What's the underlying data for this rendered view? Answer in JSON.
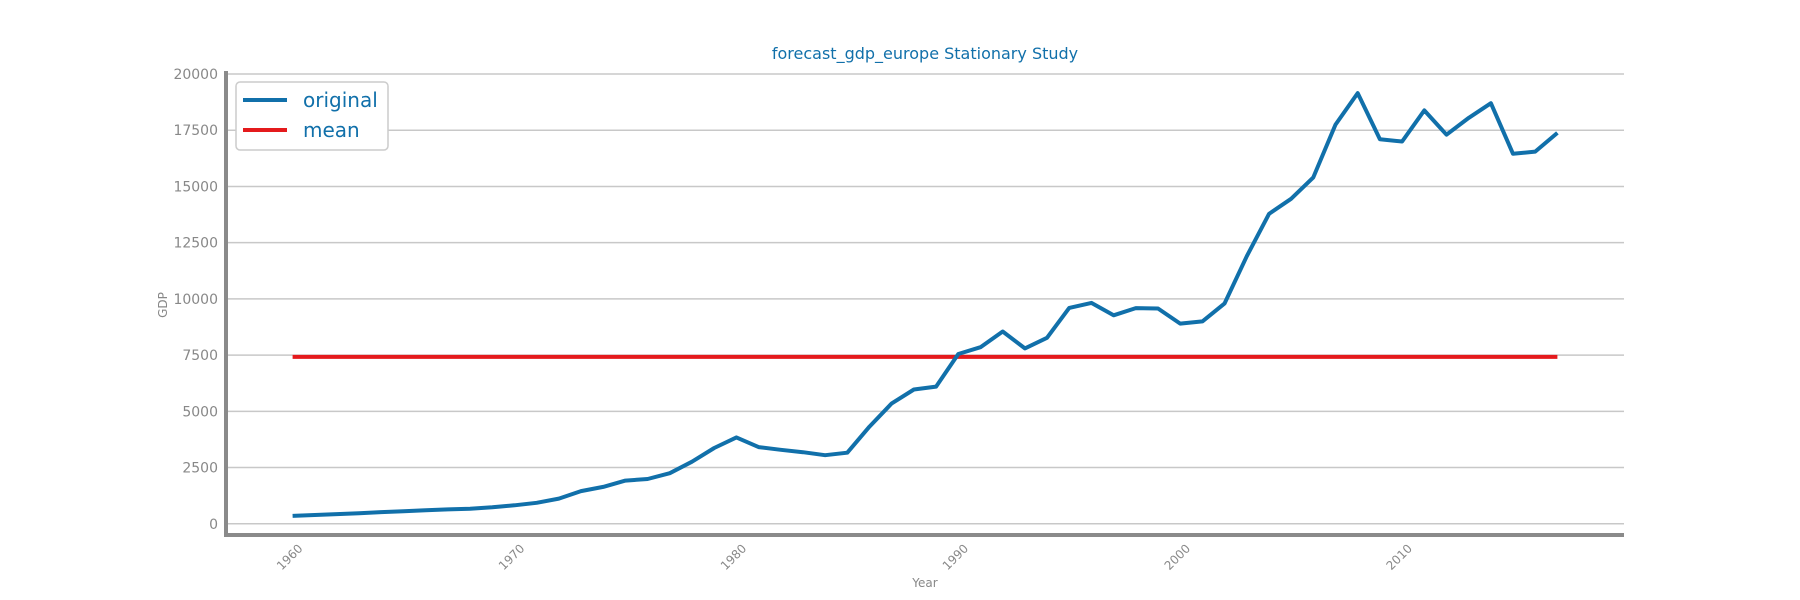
{
  "chart_data": {
    "type": "line",
    "title": "forecast_gdp_europe Stationary Study",
    "xlabel": "Year",
    "ylabel": "GDP",
    "xlim": [
      1957,
      2020
    ],
    "ylim": [
      -500,
      20000
    ],
    "yticks": [
      0,
      2500,
      5000,
      7500,
      10000,
      12500,
      15000,
      17500,
      20000
    ],
    "xticks": [
      1960,
      1970,
      1980,
      1990,
      2000,
      2010
    ],
    "grid": "horizontal",
    "legend_position": "top-left",
    "x": [
      1960,
      1961,
      1962,
      1963,
      1964,
      1965,
      1966,
      1967,
      1968,
      1969,
      1970,
      1971,
      1972,
      1973,
      1974,
      1975,
      1976,
      1977,
      1978,
      1979,
      1980,
      1981,
      1982,
      1983,
      1984,
      1985,
      1986,
      1987,
      1988,
      1989,
      1990,
      1991,
      1992,
      1993,
      1994,
      1995,
      1996,
      1997,
      1998,
      1999,
      2000,
      2001,
      2002,
      2003,
      2004,
      2005,
      2006,
      2007,
      2008,
      2009,
      2010,
      2011,
      2012,
      2013,
      2014,
      2015,
      2016,
      2017
    ],
    "series": [
      {
        "name": "original",
        "color": "#1170aa",
        "values": [
          350,
          390,
          430,
          470,
          520,
          560,
          600,
          640,
          670,
          730,
          820,
          930,
          1120,
          1450,
          1640,
          1920,
          1990,
          2250,
          2760,
          3370,
          3840,
          3410,
          3290,
          3180,
          3050,
          3160,
          4320,
          5350,
          5970,
          6100,
          7550,
          7850,
          8550,
          7800,
          8270,
          9600,
          9820,
          9270,
          9590,
          9570,
          8900,
          9000,
          9800,
          11900,
          13780,
          14450,
          15400,
          17750,
          19150,
          17100,
          17000,
          18380,
          17300,
          18050,
          18700,
          16450,
          16550,
          17380
        ]
      },
      {
        "name": "mean",
        "color": "#e41a1c",
        "values": [
          7420,
          7420,
          7420,
          7420,
          7420,
          7420,
          7420,
          7420,
          7420,
          7420,
          7420,
          7420,
          7420,
          7420,
          7420,
          7420,
          7420,
          7420,
          7420,
          7420,
          7420,
          7420,
          7420,
          7420,
          7420,
          7420,
          7420,
          7420,
          7420,
          7420,
          7420,
          7420,
          7420,
          7420,
          7420,
          7420,
          7420,
          7420,
          7420,
          7420,
          7420,
          7420,
          7420,
          7420,
          7420,
          7420,
          7420,
          7420,
          7420,
          7420,
          7420,
          7420,
          7420,
          7420,
          7420,
          7420,
          7420,
          7420
        ]
      }
    ],
    "colors": {
      "title": "#1170aa",
      "legend_text": "#1170aa",
      "axis": "#8a8a8a",
      "grid": "#c8c8c8",
      "tick": "#888888"
    }
  }
}
